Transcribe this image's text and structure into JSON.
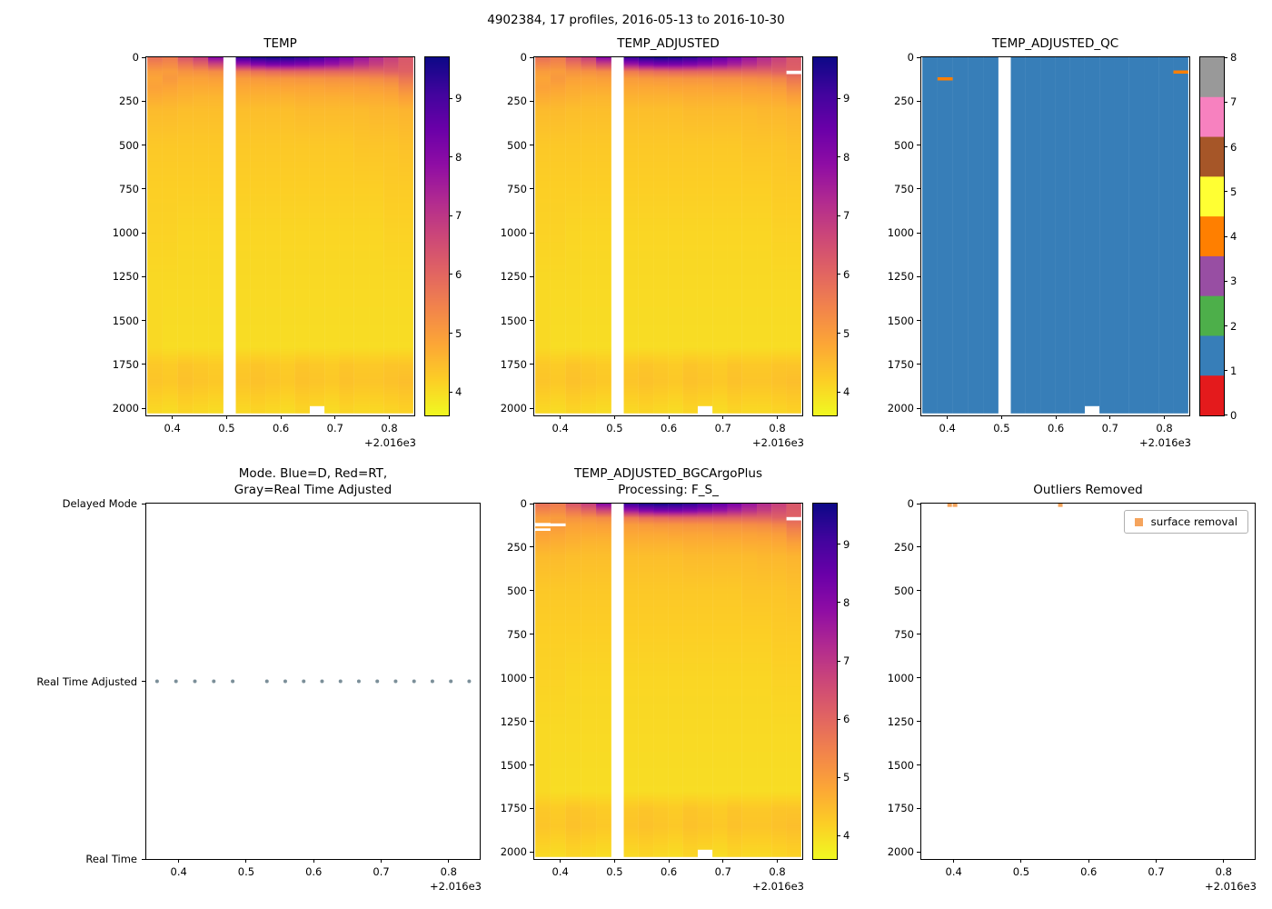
{
  "figure": {
    "title": "4902384, 17 profiles, 2016-05-13 to 2016-10-30",
    "background": "#ffffff"
  },
  "axes": {
    "x_tick_labels": [
      "0.4",
      "0.5",
      "0.6",
      "0.7",
      "0.8"
    ],
    "x_tick_values": [
      0.4,
      0.5,
      0.6,
      0.7,
      0.8
    ],
    "x_offset_label": "+2.016e3",
    "depth_tick_labels": [
      "0",
      "250",
      "500",
      "750",
      "1000",
      "1250",
      "1500",
      "1750",
      "2000"
    ],
    "depth_tick_values": [
      0,
      250,
      500,
      750,
      1000,
      1250,
      1500,
      1750,
      2000
    ]
  },
  "colors": {
    "plasma_anchors": [
      "#0d0887",
      "#41049d",
      "#6a00a8",
      "#8f0da4",
      "#b12a90",
      "#cc4778",
      "#e16462",
      "#f2844b",
      "#fca636",
      "#fcce25",
      "#f0f921"
    ],
    "qc_set1": [
      "#e41a1c",
      "#377eb8",
      "#4daf4a",
      "#984ea3",
      "#ff7f00",
      "#ffff33",
      "#a65628",
      "#f781bf",
      "#999999"
    ],
    "mode_dot": "#7b8f99",
    "outlier_marker": "#f5a45d",
    "spine": "#000000"
  },
  "chart_data": [
    {
      "type": "heatmap",
      "title": "TEMP",
      "y_axis": "depth",
      "xlim": [
        0.352,
        0.846
      ],
      "ylim": [
        0,
        2040
      ],
      "mesh_bottom": 2025,
      "x_offset_text": "+2.016e3",
      "colorbar": {
        "vmin": 3.6,
        "vmax": 9.7,
        "ticks": [
          4,
          5,
          6,
          7,
          8,
          9
        ]
      },
      "x_centers": [
        0.368,
        0.396,
        0.424,
        0.452,
        0.48,
        0.5307,
        0.5579,
        0.5852,
        0.6124,
        0.6397,
        0.6669,
        0.6942,
        0.7214,
        0.7487,
        0.7759,
        0.8032,
        0.8304
      ],
      "col_edges": [
        [
          0.354,
          0.382
        ],
        [
          0.382,
          0.41
        ],
        [
          0.41,
          0.438
        ],
        [
          0.438,
          0.466
        ],
        [
          0.466,
          0.494
        ],
        [
          0.517,
          0.5443
        ],
        [
          0.5443,
          0.5715
        ],
        [
          0.5715,
          0.5988
        ],
        [
          0.5988,
          0.626
        ],
        [
          0.626,
          0.6533
        ],
        [
          0.6533,
          0.6805
        ],
        [
          0.6805,
          0.7078
        ],
        [
          0.7078,
          0.735
        ],
        [
          0.735,
          0.7623
        ],
        [
          0.7623,
          0.7895
        ],
        [
          0.7895,
          0.8168
        ],
        [
          0.8168,
          0.844
        ]
      ],
      "depth_levels": [
        0,
        40,
        80,
        120,
        170,
        220,
        300,
        500,
        750,
        1000,
        1300,
        1650,
        1750,
        1850,
        2025
      ],
      "values": [
        [
          5.8,
          5.4,
          5.0,
          4.85,
          4.9,
          4.75,
          4.5,
          4.3,
          4.2,
          4.15,
          4.05,
          4.05,
          4.3,
          4.35,
          4.05
        ],
        [
          5.6,
          5.3,
          5.0,
          5.05,
          4.85,
          4.7,
          4.5,
          4.3,
          4.2,
          4.15,
          4.05,
          4.0,
          4.25,
          4.3,
          4.0
        ],
        [
          6.3,
          5.7,
          5.15,
          4.9,
          4.75,
          4.65,
          4.45,
          4.3,
          4.2,
          4.1,
          4.05,
          4.0,
          4.35,
          4.4,
          4.1
        ],
        [
          6.8,
          6.0,
          5.2,
          4.9,
          4.75,
          4.6,
          4.45,
          4.3,
          4.2,
          4.1,
          4.05,
          4.0,
          4.3,
          4.35,
          4.05
        ],
        [
          8.0,
          6.6,
          5.3,
          4.95,
          4.75,
          4.6,
          4.45,
          4.3,
          4.2,
          4.1,
          4.05,
          4.0,
          4.25,
          4.3,
          4.0
        ],
        [
          9.2,
          7.6,
          5.6,
          5.0,
          4.8,
          4.65,
          4.45,
          4.3,
          4.2,
          4.1,
          4.05,
          4.0,
          4.3,
          4.35,
          4.05
        ],
        [
          9.5,
          8.0,
          5.8,
          5.05,
          4.8,
          4.65,
          4.45,
          4.3,
          4.2,
          4.1,
          4.05,
          4.0,
          4.35,
          4.4,
          4.1
        ],
        [
          9.6,
          8.2,
          5.9,
          5.1,
          4.8,
          4.65,
          4.45,
          4.3,
          4.2,
          4.1,
          4.05,
          4.0,
          4.3,
          4.35,
          4.05
        ],
        [
          9.5,
          8.2,
          6.0,
          5.1,
          4.85,
          4.65,
          4.45,
          4.3,
          4.2,
          4.1,
          4.05,
          4.0,
          4.25,
          4.3,
          4.0
        ],
        [
          9.3,
          8.1,
          6.0,
          5.15,
          4.85,
          4.7,
          4.5,
          4.3,
          4.2,
          4.1,
          4.05,
          4.0,
          4.35,
          4.4,
          4.1
        ],
        [
          9.0,
          7.9,
          6.0,
          5.15,
          4.85,
          4.7,
          4.5,
          4.3,
          4.2,
          4.1,
          4.05,
          4.0,
          4.3,
          4.35,
          4.05
        ],
        [
          8.6,
          7.7,
          6.0,
          5.2,
          4.9,
          4.7,
          4.5,
          4.3,
          4.2,
          4.1,
          4.05,
          4.0,
          4.25,
          4.3,
          4.0
        ],
        [
          8.2,
          7.4,
          6.0,
          5.2,
          4.9,
          4.7,
          4.5,
          4.3,
          4.2,
          4.1,
          4.05,
          4.0,
          4.35,
          4.4,
          4.1
        ],
        [
          7.7,
          7.1,
          6.0,
          5.25,
          4.9,
          4.75,
          4.5,
          4.35,
          4.2,
          4.1,
          4.05,
          4.0,
          4.3,
          4.35,
          4.05
        ],
        [
          7.2,
          6.8,
          6.0,
          5.3,
          4.95,
          4.75,
          4.55,
          4.35,
          4.2,
          4.1,
          4.05,
          4.0,
          4.3,
          4.35,
          4.05
        ],
        [
          6.8,
          6.5,
          6.1,
          5.4,
          5.0,
          4.8,
          4.55,
          4.35,
          4.25,
          4.15,
          4.05,
          4.0,
          4.35,
          4.4,
          4.1
        ],
        [
          6.3,
          6.2,
          6.1,
          5.7,
          5.3,
          4.95,
          4.6,
          4.4,
          4.25,
          4.15,
          4.05,
          4.0,
          4.35,
          4.45,
          4.15
        ]
      ],
      "masked": [
        {
          "col": 10,
          "d0": 1985,
          "d1": 2025
        }
      ]
    },
    {
      "type": "heatmap",
      "title": "TEMP_ADJUSTED",
      "y_axis": "depth",
      "xlim": [
        0.352,
        0.846
      ],
      "ylim": [
        0,
        2040
      ],
      "mesh_bottom": 2025,
      "x_offset_text": "+2.016e3",
      "colorbar": {
        "vmin": 3.6,
        "vmax": 9.7,
        "ticks": [
          4,
          5,
          6,
          7,
          8,
          9
        ]
      },
      "values_from": 0,
      "masked": [
        {
          "col": 10,
          "d0": 1985,
          "d1": 2025
        },
        {
          "col": 16,
          "d0": 75,
          "d1": 95
        }
      ]
    },
    {
      "type": "qc_heatmap",
      "title": "TEMP_ADJUSTED_QC",
      "y_axis": "depth",
      "xlim": [
        0.352,
        0.846
      ],
      "ylim": [
        0,
        2040
      ],
      "mesh_bottom": 2025,
      "x_offset_text": "+2.016e3",
      "values_from": 0,
      "base_qc": 1,
      "anomalies": [
        {
          "col": 1,
          "d0": 112,
          "d1": 130,
          "qc": 4
        },
        {
          "col": 16,
          "d0": 75,
          "d1": 92,
          "qc": 4
        }
      ],
      "masked": [
        {
          "col": 10,
          "d0": 1985,
          "d1": 2025
        }
      ],
      "colorbar_ticks": [
        0,
        1,
        2,
        3,
        4,
        5,
        6,
        7,
        8
      ]
    },
    {
      "type": "mode_scatter",
      "title": "Mode. Blue=D, Red=RT,\nGray=Real Time Adjusted",
      "y_axis": "category",
      "categories": [
        "Delayed Mode",
        "Real Time Adjusted",
        "Real Time"
      ],
      "xlim": [
        0.352,
        0.846
      ],
      "x_offset_text": "+2.016e3",
      "points_x_from": 0,
      "points_category": "Real Time Adjusted"
    },
    {
      "type": "heatmap",
      "title": "TEMP_ADJUSTED_BGCArgoPlus\nProcessing: F_S_",
      "y_axis": "depth",
      "xlim": [
        0.352,
        0.846
      ],
      "ylim": [
        0,
        2040
      ],
      "mesh_bottom": 2025,
      "x_offset_text": "+2.016e3",
      "colorbar": {
        "vmin": 3.6,
        "vmax": 9.7,
        "ticks": [
          4,
          5,
          6,
          7,
          8,
          9
        ]
      },
      "values_from": 0,
      "masked": [
        {
          "col": 10,
          "d0": 1985,
          "d1": 2025
        },
        {
          "col": 16,
          "d0": 75,
          "d1": 95
        },
        {
          "col": 0,
          "d0": 108,
          "d1": 128
        },
        {
          "col": 0,
          "d0": 140,
          "d1": 155
        },
        {
          "col": 1,
          "d0": 112,
          "d1": 130
        }
      ]
    },
    {
      "type": "outlier_scatter",
      "title": "Outliers Removed",
      "y_axis": "depth",
      "xlim": [
        0.352,
        0.846
      ],
      "ylim": [
        0,
        2040
      ],
      "x_offset_text": "+2.016e3",
      "legend_label": "surface removal",
      "points": [
        {
          "x": 0.394,
          "depth": 6
        },
        {
          "x": 0.402,
          "depth": 6
        },
        {
          "x": 0.558,
          "depth": 6
        }
      ]
    }
  ]
}
